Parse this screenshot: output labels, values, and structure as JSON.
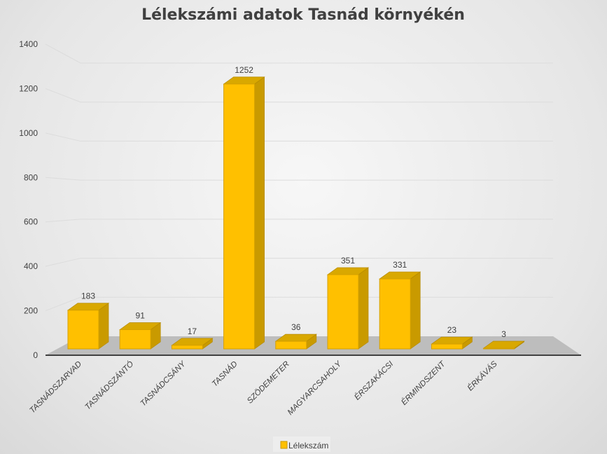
{
  "chart_data": {
    "type": "bar",
    "title": "Lélekszámi adatok Tasnád környékén",
    "categories": [
      "TASNÁDSZARVAD",
      "TASNÁDSZÁNTÓ",
      "TASNÁDCSÁNY",
      "TASNÁD",
      "SZÖDEMETER",
      "MAGYARCSAHOLY",
      "ÉRSZAKÁCSI",
      "ÉRMINDSZENT",
      "ÉRKÁVÁS"
    ],
    "series": [
      {
        "name": "Lélekszám",
        "values": [
          183,
          91,
          17,
          1252,
          36,
          351,
          331,
          23,
          3
        ],
        "color": "#FFC000"
      }
    ],
    "ylim": [
      0,
      1400
    ],
    "yticks": [
      "0",
      "200",
      "400",
      "600",
      "800",
      "1000",
      "1200",
      "1400"
    ],
    "xlabel": "",
    "ylabel": "",
    "grid": true,
    "legend": "bottom",
    "style": "3d-column"
  }
}
